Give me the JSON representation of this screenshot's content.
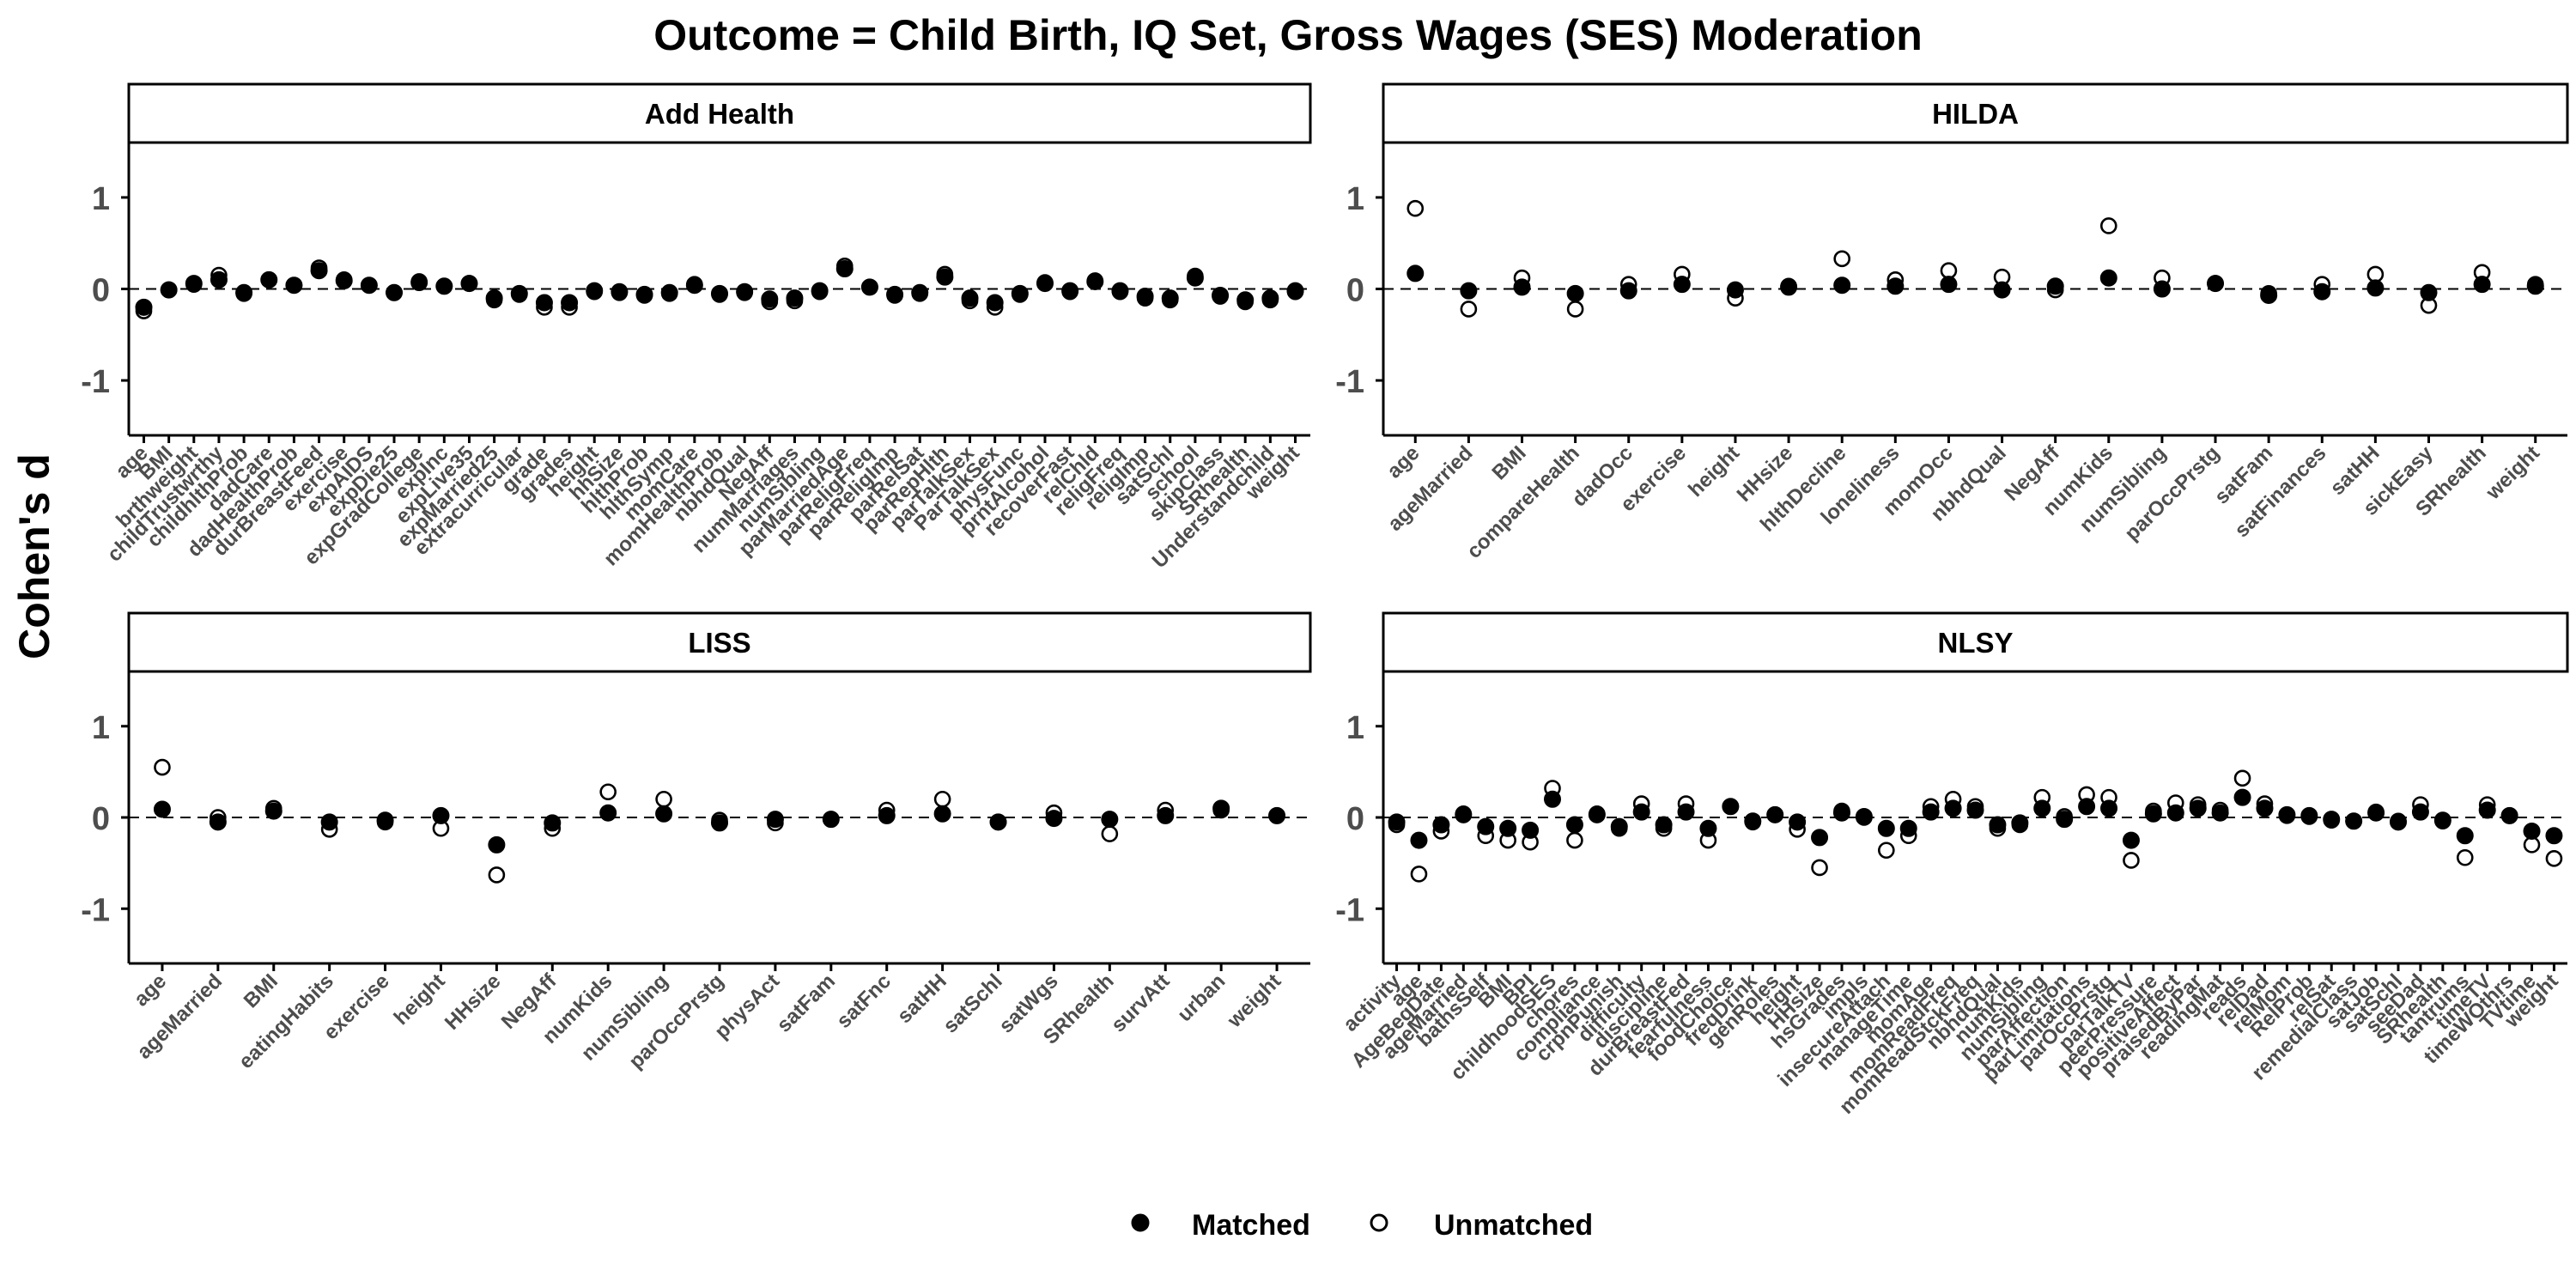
{
  "title": "Outcome = Child Birth, IQ Set, Gross Wages (SES) Moderation",
  "y_axis_label": "Cohen's d",
  "legend": {
    "matched_label": "Matched",
    "unmatched_label": "Unmatched",
    "position": "bottom"
  },
  "colors": {
    "matched": "#000000",
    "unmatched": "#ffffff",
    "strip_fill": "#ffffff",
    "axis": "#000000",
    "tick_text": "#4d4d4d",
    "zero_line": "#000000"
  },
  "chart_data": [
    {
      "type": "scatter",
      "panel": "Add Health",
      "ylim": [
        -1.6,
        1.6
      ],
      "y_ticks": [
        -1,
        0,
        1
      ],
      "grid": false,
      "zero_line": "dashed",
      "categories": [
        "age",
        "BMI",
        "brthweight",
        "childTrustwrthy",
        "childhlthProb",
        "dadCare",
        "dadHealthProb",
        "durBreastFeed",
        "exercise",
        "expAIDS",
        "expDie25",
        "expGradCollege",
        "expInc",
        "expLive35",
        "expMarried25",
        "extracurricular",
        "grade",
        "grades",
        "height",
        "hhSize",
        "hlthProb",
        "hlthSymp",
        "momCare",
        "momHealthProb",
        "nbhdQual",
        "NegAff",
        "numMarriages",
        "numSibling",
        "parMarriedAge",
        "parReligFreq",
        "parReligImp",
        "parRelSat",
        "parRepHlth",
        "parTalkSex",
        "ParTalkSex",
        "physFunc",
        "prntAlcohol",
        "recoverFast",
        "relChld",
        "religFreq",
        "religImp",
        "satSchl",
        "school",
        "skipClass",
        "SRhealth",
        "Understandchild",
        "weight"
      ],
      "series": [
        {
          "name": "Matched",
          "values": [
            -0.2,
            -0.01,
            0.06,
            0.1,
            -0.04,
            0.1,
            0.04,
            0.2,
            0.09,
            0.04,
            -0.04,
            0.07,
            0.03,
            0.06,
            -0.1,
            -0.05,
            -0.15,
            -0.15,
            -0.02,
            -0.03,
            -0.06,
            -0.04,
            0.04,
            -0.05,
            -0.03,
            -0.11,
            -0.1,
            -0.02,
            0.22,
            0.02,
            -0.06,
            -0.04,
            0.13,
            -0.1,
            -0.15,
            -0.05,
            0.06,
            -0.02,
            0.08,
            -0.02,
            -0.08,
            -0.1,
            0.12,
            -0.07,
            -0.12,
            -0.1,
            -0.02
          ]
        },
        {
          "name": "Unmatched",
          "values": [
            -0.24,
            -0.01,
            0.05,
            0.15,
            -0.05,
            0.1,
            0.04,
            0.23,
            0.1,
            0.04,
            -0.04,
            0.08,
            0.03,
            0.06,
            -0.12,
            -0.06,
            -0.2,
            -0.2,
            -0.03,
            -0.04,
            -0.07,
            -0.05,
            0.05,
            -0.06,
            -0.04,
            -0.14,
            -0.13,
            -0.03,
            0.25,
            0.02,
            -0.07,
            -0.05,
            0.16,
            -0.13,
            -0.2,
            -0.06,
            0.07,
            -0.03,
            0.09,
            -0.03,
            -0.1,
            -0.12,
            0.14,
            -0.08,
            -0.14,
            -0.12,
            -0.03
          ]
        }
      ]
    },
    {
      "type": "scatter",
      "panel": "HILDA",
      "ylim": [
        -1.6,
        1.6
      ],
      "y_ticks": [
        -1,
        0,
        1
      ],
      "grid": false,
      "zero_line": "dashed",
      "categories": [
        "age",
        "ageMarried",
        "BMI",
        "compareHealth",
        "dadOcc",
        "exercise",
        "height",
        "HHsize",
        "hlthDecline",
        "loneliness",
        "momOcc",
        "nbhdQual",
        "NegAff",
        "numKids",
        "numSibling",
        "parOccPrstg",
        "satFam",
        "satFinances",
        "satHH",
        "sickEasy",
        "SRhealth",
        "weight"
      ],
      "series": [
        {
          "name": "Matched",
          "values": [
            0.17,
            -0.02,
            0.02,
            -0.05,
            -0.02,
            0.05,
            -0.01,
            0.02,
            0.04,
            0.03,
            0.05,
            -0.01,
            0.03,
            0.12,
            0.0,
            0.06,
            -0.07,
            -0.03,
            0.01,
            -0.04,
            0.05,
            0.03
          ]
        },
        {
          "name": "Unmatched",
          "values": [
            0.88,
            -0.22,
            0.12,
            -0.22,
            0.05,
            0.16,
            -0.1,
            0.03,
            0.33,
            0.1,
            0.2,
            0.13,
            -0.01,
            0.69,
            0.12,
            0.06,
            -0.05,
            0.05,
            0.16,
            -0.18,
            0.18,
            0.05
          ]
        }
      ]
    },
    {
      "type": "scatter",
      "panel": "LISS",
      "ylim": [
        -1.6,
        1.6
      ],
      "y_ticks": [
        -1,
        0,
        1
      ],
      "grid": false,
      "zero_line": "dashed",
      "categories": [
        "age",
        "ageMarried",
        "BMI",
        "eatingHabits",
        "exercise",
        "height",
        "HHsize",
        "NegAff",
        "numKids",
        "numSibling",
        "parOccPrstg",
        "physAct",
        "satFam",
        "satFnc",
        "satHH",
        "satSchl",
        "satWgs",
        "SRhealth",
        "survAtt",
        "urban",
        "weight"
      ],
      "series": [
        {
          "name": "Matched",
          "values": [
            0.09,
            -0.05,
            0.07,
            -0.05,
            -0.03,
            0.02,
            -0.3,
            -0.06,
            0.05,
            0.04,
            -0.06,
            -0.02,
            -0.02,
            0.02,
            0.04,
            -0.05,
            -0.01,
            -0.02,
            0.02,
            0.1,
            0.02
          ]
        },
        {
          "name": "Unmatched",
          "values": [
            0.55,
            0.0,
            0.1,
            -0.13,
            -0.05,
            -0.12,
            -0.63,
            -0.12,
            0.28,
            0.2,
            -0.03,
            -0.06,
            -0.02,
            0.08,
            0.2,
            -0.05,
            0.05,
            -0.18,
            0.08,
            0.08,
            0.02
          ]
        }
      ]
    },
    {
      "type": "scatter",
      "panel": "NLSY",
      "ylim": [
        -1.6,
        1.6
      ],
      "y_ticks": [
        -1,
        0,
        1
      ],
      "grid": false,
      "zero_line": "dashed",
      "categories": [
        "activity",
        "age",
        "AgeBegDate",
        "ageMarried",
        "bathsSelf",
        "BMI",
        "BPI",
        "childhoodSES",
        "chores",
        "compliance",
        "crpnPunish",
        "difficulty",
        "discipline",
        "durBreastFed",
        "fearfulness",
        "foodChoice",
        "freqDrink",
        "genRoles",
        "height",
        "HHsize",
        "hsGrades",
        "impls",
        "insecureAttach",
        "manageTime",
        "momAge",
        "momReadFreq",
        "momReadStckFreq",
        "nbhdQual",
        "numKids",
        "numSibling",
        "parAffection",
        "parLimitations",
        "parOccPrstg",
        "parTalkTV",
        "peerPressure",
        "positiveAffect",
        "praisedByPar",
        "readingMat",
        "reads",
        "relDad",
        "relMom",
        "RelProb",
        "relSat",
        "remedialClass",
        "satJob",
        "satSchl",
        "seeDad",
        "SRhealth",
        "tantrums",
        "timeTV",
        "timeWOthrs",
        "TVtime",
        "weight"
      ],
      "series": [
        {
          "name": "Matched",
          "values": [
            -0.05,
            -0.25,
            -0.08,
            0.03,
            -0.1,
            -0.12,
            -0.14,
            0.2,
            -0.08,
            0.03,
            -0.1,
            0.06,
            -0.08,
            0.06,
            -0.12,
            0.12,
            -0.04,
            0.03,
            -0.05,
            -0.22,
            0.05,
            0.01,
            -0.12,
            -0.12,
            0.06,
            0.1,
            0.08,
            -0.08,
            -0.06,
            0.1,
            -0.02,
            0.12,
            0.1,
            -0.25,
            0.04,
            0.05,
            0.1,
            0.05,
            0.22,
            0.1,
            0.03,
            0.02,
            -0.02,
            -0.04,
            0.05,
            -0.05,
            0.06,
            -0.03,
            -0.2,
            0.08,
            0.02,
            -0.15,
            -0.2
          ]
        },
        {
          "name": "Unmatched",
          "values": [
            -0.08,
            -0.62,
            -0.15,
            0.04,
            -0.2,
            -0.25,
            -0.27,
            0.32,
            -0.25,
            0.04,
            -0.12,
            0.15,
            -0.12,
            0.15,
            -0.25,
            0.12,
            -0.05,
            0.03,
            -0.13,
            -0.55,
            0.07,
            0.0,
            -0.36,
            -0.2,
            0.12,
            0.2,
            0.12,
            -0.12,
            -0.08,
            0.22,
            0.01,
            0.25,
            0.22,
            -0.47,
            0.07,
            0.16,
            0.14,
            0.08,
            0.43,
            0.15,
            0.02,
            0.01,
            -0.03,
            -0.04,
            0.06,
            -0.04,
            0.14,
            -0.04,
            -0.44,
            0.14,
            0.02,
            -0.3,
            -0.45
          ]
        }
      ]
    }
  ]
}
